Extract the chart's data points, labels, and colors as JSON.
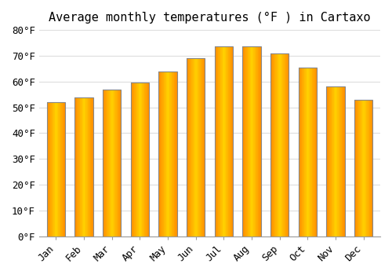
{
  "title": "Average monthly temperatures (°F ) in Cartaxo",
  "months": [
    "Jan",
    "Feb",
    "Mar",
    "Apr",
    "May",
    "Jun",
    "Jul",
    "Aug",
    "Sep",
    "Oct",
    "Nov",
    "Dec"
  ],
  "values": [
    52.0,
    54.0,
    57.0,
    59.5,
    64.0,
    69.0,
    73.5,
    73.5,
    71.0,
    65.5,
    58.0,
    53.0
  ],
  "bar_color": "#FFA500",
  "bar_edge_color": "#888888",
  "ylim": [
    0,
    80
  ],
  "yticks": [
    0,
    10,
    20,
    30,
    40,
    50,
    60,
    70,
    80
  ],
  "ytick_labels": [
    "0°F",
    "10°F",
    "20°F",
    "30°F",
    "40°F",
    "50°F",
    "60°F",
    "70°F",
    "80°F"
  ],
  "background_color": "#ffffff",
  "grid_color": "#dddddd",
  "title_fontsize": 11,
  "tick_fontsize": 9
}
